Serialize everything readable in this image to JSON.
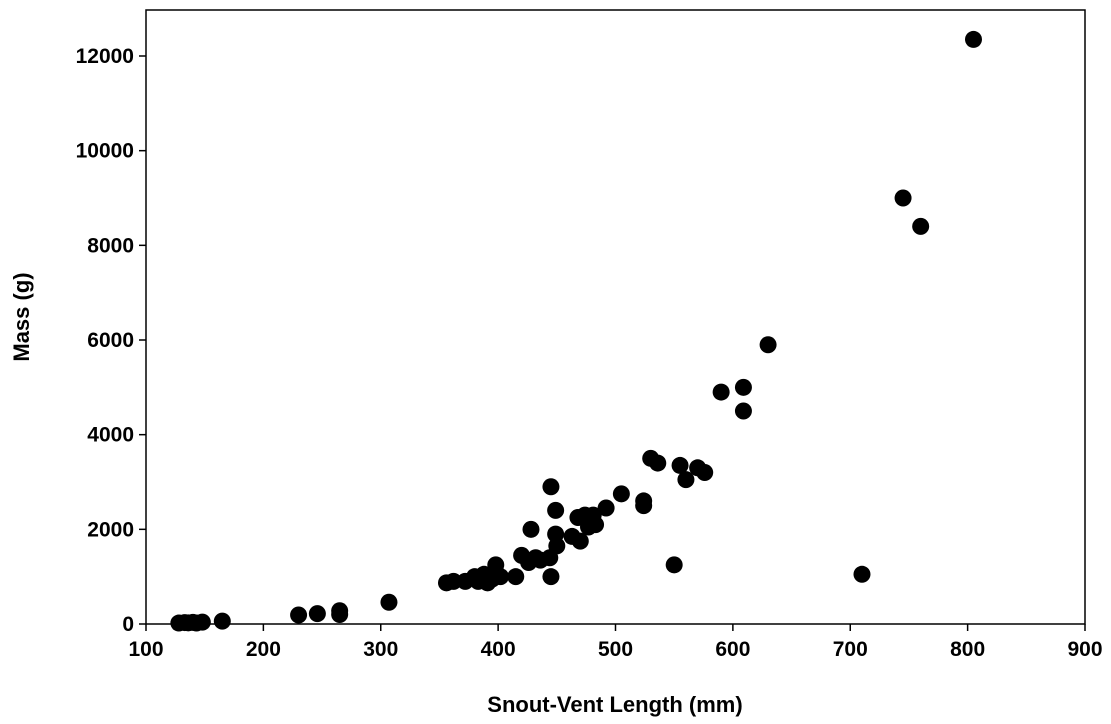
{
  "chart_data": {
    "type": "scatter",
    "title": "",
    "xlabel": "Snout-Vent Length (mm)",
    "ylabel": "Mass (g)",
    "xlim": [
      100,
      900
    ],
    "ylim": [
      0,
      13000
    ],
    "xticks": [
      100,
      200,
      300,
      400,
      500,
      600,
      700,
      800,
      900
    ],
    "yticks": [
      0,
      2000,
      4000,
      6000,
      8000,
      10000,
      12000
    ],
    "grid": false,
    "legend": "none",
    "marker_color": "#000000",
    "points": [
      [
        128,
        20
      ],
      [
        133,
        30
      ],
      [
        136,
        25
      ],
      [
        140,
        35
      ],
      [
        143,
        20
      ],
      [
        148,
        40
      ],
      [
        165,
        60
      ],
      [
        230,
        190
      ],
      [
        246,
        220
      ],
      [
        265,
        200
      ],
      [
        265,
        280
      ],
      [
        307,
        460
      ],
      [
        356,
        870
      ],
      [
        362,
        900
      ],
      [
        372,
        900
      ],
      [
        380,
        1000
      ],
      [
        383,
        900
      ],
      [
        388,
        1050
      ],
      [
        391,
        870
      ],
      [
        395,
        950
      ],
      [
        398,
        1100
      ],
      [
        398,
        1250
      ],
      [
        402,
        1000
      ],
      [
        415,
        1000
      ],
      [
        420,
        1450
      ],
      [
        426,
        1300
      ],
      [
        428,
        2000
      ],
      [
        432,
        1400
      ],
      [
        436,
        1350
      ],
      [
        444,
        1400
      ],
      [
        445,
        2900
      ],
      [
        445,
        1000
      ],
      [
        449,
        1900
      ],
      [
        449,
        2400
      ],
      [
        450,
        1650
      ],
      [
        463,
        1850
      ],
      [
        468,
        2250
      ],
      [
        470,
        1750
      ],
      [
        474,
        2300
      ],
      [
        477,
        2050
      ],
      [
        481,
        2300
      ],
      [
        483,
        2100
      ],
      [
        492,
        2450
      ],
      [
        505,
        2750
      ],
      [
        524,
        2500
      ],
      [
        524,
        2600
      ],
      [
        530,
        3500
      ],
      [
        536,
        3400
      ],
      [
        550,
        1250
      ],
      [
        555,
        3350
      ],
      [
        560,
        3050
      ],
      [
        570,
        3300
      ],
      [
        576,
        3200
      ],
      [
        590,
        4900
      ],
      [
        609,
        5000
      ],
      [
        609,
        4500
      ],
      [
        630,
        5900
      ],
      [
        710,
        1050
      ],
      [
        745,
        9000
      ],
      [
        760,
        8400
      ],
      [
        805,
        12350
      ]
    ]
  }
}
